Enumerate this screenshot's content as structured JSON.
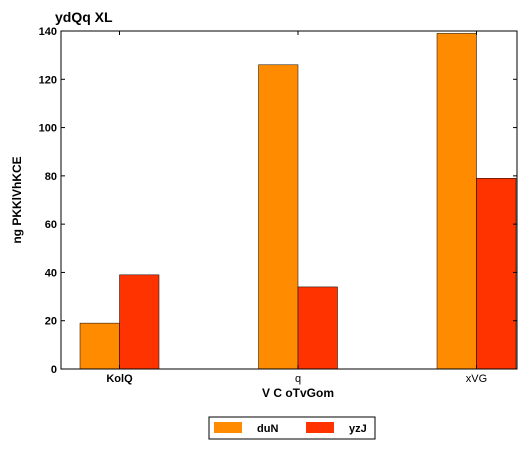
{
  "chart_data": {
    "type": "bar",
    "title": "ydQq XL",
    "xlabel": "V C oTvGom",
    "ylabel": "ng PKKlVhKCE",
    "categories": [
      "KolQ",
      "q",
      "xVG"
    ],
    "series": [
      {
        "name": "duN",
        "values": [
          19,
          126,
          139
        ],
        "color": "#ff8c00"
      },
      {
        "name": "yzJ",
        "values": [
          39,
          34,
          79
        ],
        "color": "#ff3300"
      }
    ],
    "ylim": [
      0,
      140
    ],
    "yticks": [
      0,
      20,
      40,
      60,
      80,
      100,
      120,
      140
    ],
    "grid": false,
    "legend_position": "bottom-center"
  }
}
